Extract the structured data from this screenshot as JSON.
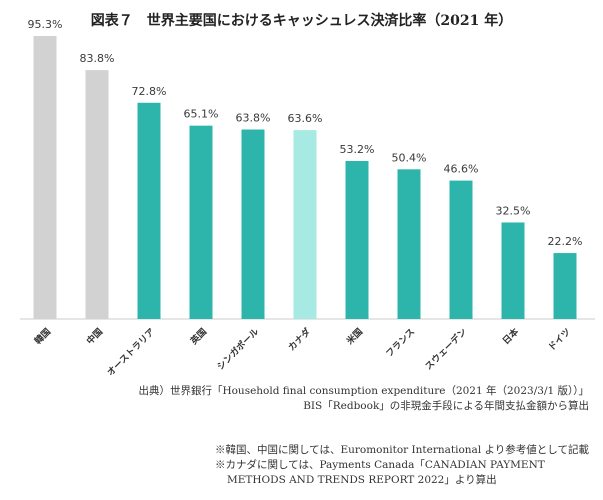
{
  "colors": {
    "teal": "#2db5ac",
    "highlight": "#a7e9e3",
    "gray": "#d2d2d2",
    "axis": "#cccccc"
  },
  "chart_data": {
    "type": "bar",
    "title": "図表７　世界主要国におけるキャッシュレス決済比率（2021 年）",
    "xlabel": "",
    "ylabel": "",
    "ylim": [
      0,
      100
    ],
    "grid": false,
    "categories": [
      "韓国",
      "中国",
      "オーストラリア",
      "英国",
      "シンガポール",
      "カナダ",
      "米国",
      "フランス",
      "スウェーデン",
      "日本",
      "ドイツ"
    ],
    "values": [
      95.3,
      83.8,
      72.8,
      65.1,
      63.8,
      63.6,
      53.2,
      50.4,
      46.6,
      32.5,
      22.2
    ],
    "value_labels": [
      "95.3%",
      "83.8%",
      "72.8%",
      "65.1%",
      "63.8%",
      "63.6%",
      "53.2%",
      "50.4%",
      "46.6%",
      "32.5%",
      "22.2%"
    ],
    "bar_colors": [
      "gray",
      "gray",
      "teal",
      "teal",
      "teal",
      "highlight",
      "teal",
      "teal",
      "teal",
      "teal",
      "teal"
    ]
  },
  "source": {
    "line1": "出典）世界銀行「Household final consumption expenditure（2021 年（2023/3/1 版））」",
    "line2": "BIS「Redbook」の非現金手段による年間支払金額から算出"
  },
  "notes": {
    "line1": "※韓国、中国に関しては、Euromonitor International より参考値として記載",
    "line2": "※カナダに関しては、Payments Canada「CANADIAN PAYMENT",
    "line3": "METHODS AND TRENDS REPORT 2022」より算出"
  }
}
